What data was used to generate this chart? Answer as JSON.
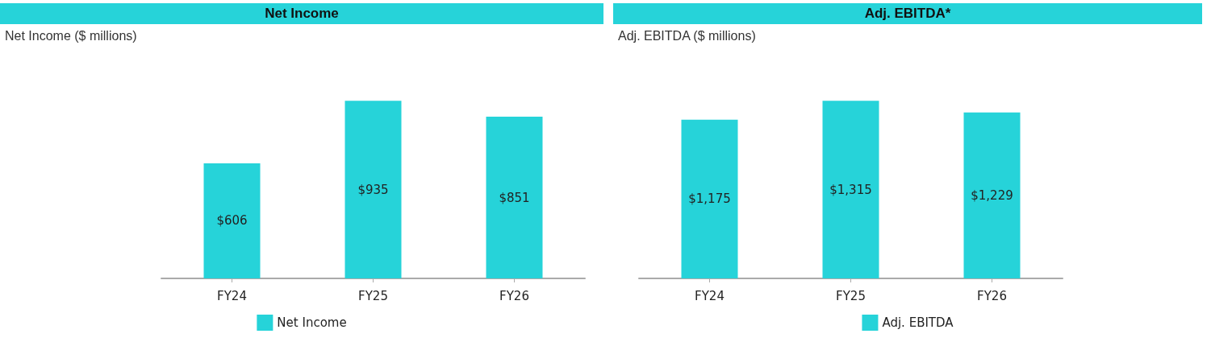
{
  "chart_data": [
    {
      "type": "bar",
      "title": "Net Income",
      "subtitle": "Net Income ($ millions)",
      "categories": [
        "FY24",
        "FY25",
        "FY26"
      ],
      "series": [
        {
          "name": "Net Income",
          "color": "#26d3d9",
          "values": [
            606,
            935,
            851
          ],
          "value_labels": [
            "$606",
            "$935",
            "$851"
          ]
        }
      ],
      "tick_labels": "x",
      "grid": false,
      "legend": "bottom"
    },
    {
      "type": "bar",
      "title": "Adj. EBITDA*",
      "subtitle": "Adj. EBITDA ($ millions)",
      "categories": [
        "FY24",
        "FY25",
        "FY26"
      ],
      "series": [
        {
          "name": "Adj. EBITDA",
          "color": "#26d3d9",
          "values": [
            1175,
            1315,
            1229
          ],
          "value_labels": [
            "$1,175",
            "$1,315",
            "$1,229"
          ]
        }
      ],
      "tick_labels": "x",
      "grid": false,
      "legend": "bottom"
    }
  ]
}
